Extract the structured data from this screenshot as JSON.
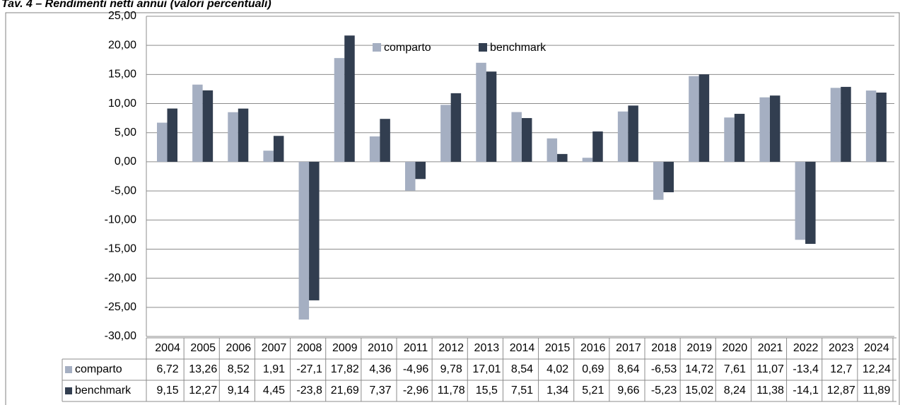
{
  "chart_data": {
    "type": "bar",
    "title": "Tav. 4 – Rendimenti netti annui (valori percentuali)",
    "categories": [
      "2004",
      "2005",
      "2006",
      "2007",
      "2008",
      "2009",
      "2010",
      "2011",
      "2012",
      "2013",
      "2014",
      "2015",
      "2016",
      "2017",
      "2018",
      "2019",
      "2020",
      "2021",
      "2022",
      "2023",
      "2024"
    ],
    "series": [
      {
        "name": "comparto",
        "color": "#a5afc2",
        "values": [
          6.72,
          13.26,
          8.52,
          1.91,
          -27.1,
          17.82,
          4.36,
          -4.96,
          9.78,
          17.01,
          8.54,
          4.02,
          0.69,
          8.64,
          -6.53,
          14.72,
          7.61,
          11.07,
          -13.4,
          12.7,
          12.24
        ],
        "value_labels": [
          "6,72",
          "13,26",
          "8,52",
          "1,91",
          "-27,1",
          "17,82",
          "4,36",
          "-4,96",
          "9,78",
          "17,01",
          "8,54",
          "4,02",
          "0,69",
          "8,64",
          "-6,53",
          "14,72",
          "7,61",
          "11,07",
          "-13,4",
          "12,7",
          "12,24"
        ]
      },
      {
        "name": "benchmark",
        "color": "#323e50",
        "values": [
          9.15,
          12.27,
          9.14,
          4.45,
          -23.8,
          21.69,
          7.37,
          -2.96,
          11.78,
          15.5,
          7.51,
          1.34,
          5.21,
          9.66,
          -5.23,
          15.02,
          8.24,
          11.38,
          -14.1,
          12.87,
          11.89
        ],
        "value_labels": [
          "9,15",
          "12,27",
          "9,14",
          "4,45",
          "-23,8",
          "21,69",
          "7,37",
          "-2,96",
          "11,78",
          "15,5",
          "7,51",
          "1,34",
          "5,21",
          "9,66",
          "-5,23",
          "15,02",
          "8,24",
          "11,38",
          "-14,1",
          "12,87",
          "11,89"
        ]
      }
    ],
    "ylim": [
      -30,
      25
    ],
    "yticks": [
      {
        "value": -30,
        "label": "-30,00"
      },
      {
        "value": -25,
        "label": "-25,00"
      },
      {
        "value": -20,
        "label": "-20,00"
      },
      {
        "value": -15,
        "label": "-15,00"
      },
      {
        "value": -10,
        "label": "-10,00"
      },
      {
        "value": -5,
        "label": "-5,00"
      },
      {
        "value": 0,
        "label": "0,00"
      },
      {
        "value": 5,
        "label": "5,00"
      },
      {
        "value": 10,
        "label": "10,00"
      },
      {
        "value": 15,
        "label": "15,00"
      },
      {
        "value": 20,
        "label": "20,00"
      },
      {
        "value": 25,
        "label": "25,00"
      }
    ],
    "grid": true
  }
}
